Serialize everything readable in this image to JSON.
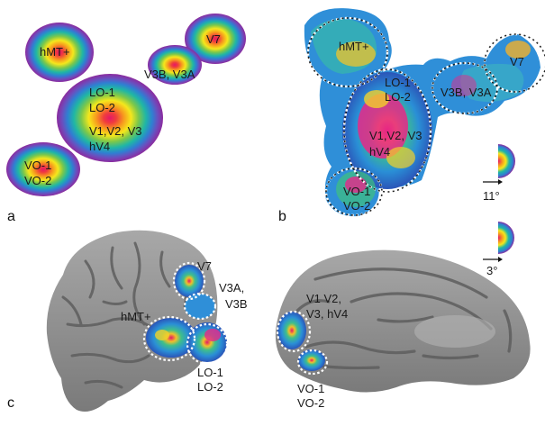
{
  "panels": {
    "a": "a",
    "b": "b",
    "c": "c"
  },
  "panel_a": {
    "hmt": "hMT+",
    "v7": "V7",
    "v3b_v3a": "V3B, V3A",
    "lo1": "LO-1",
    "lo2": "LO-2",
    "v1v2v3": "V1,V2, V3",
    "hv4": "hV4",
    "vo1": "VO-1",
    "vo2": "VO-2"
  },
  "panel_b": {
    "hmt": "hMT+",
    "v7": "V7",
    "lo1": "LO-1",
    "lo2": "LO-2",
    "v3b_v3a": "V3B, V3A",
    "v1v2v3": "V1,V2, V3",
    "hv4": "hV4",
    "vo1": "VO-1",
    "vo2": "VO-2"
  },
  "scale": {
    "large": "11°",
    "small": "3°"
  },
  "panel_c": {
    "v7": "V7",
    "v3a": "V3A,",
    "v3b": "V3B",
    "hmt": "hMT+",
    "lo1": "LO-1",
    "lo2": "LO-2",
    "v1v2": "V1 V2,",
    "v3hv4": "V3, hV4",
    "vo1": "VO-1",
    "vo2": "VO-2"
  },
  "colors": {
    "ring_outer": "#8c2b9e",
    "center": "#e4196c",
    "brain": "#8e8e8e"
  }
}
